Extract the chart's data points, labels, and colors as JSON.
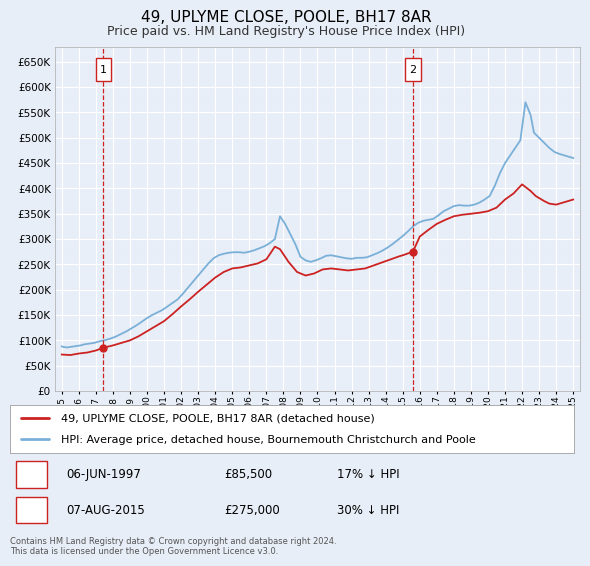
{
  "title": "49, UPLYME CLOSE, POOLE, BH17 8AR",
  "subtitle": "Price paid vs. HM Land Registry's House Price Index (HPI)",
  "background_color": "#e8eef7",
  "plot_bg_color": "#e8eef7",
  "red_color": "#cc2222",
  "blue_color": "#7ab0d8",
  "grid_color": "#ffffff",
  "legend_labels": [
    "49, UPLYME CLOSE, POOLE, BH17 8AR (detached house)",
    "HPI: Average price, detached house, Bournemouth Christchurch and Poole"
  ],
  "transaction1_date": "06-JUN-1997",
  "transaction1_price": "£85,500",
  "transaction1_hpi": "17% ↓ HPI",
  "transaction1_year": 1997.44,
  "transaction1_value": 85500,
  "transaction2_date": "07-AUG-2015",
  "transaction2_price": "£275,000",
  "transaction2_hpi": "30% ↓ HPI",
  "transaction2_year": 2015.6,
  "transaction2_value": 275000,
  "footer": "Contains HM Land Registry data © Crown copyright and database right 2024.\nThis data is licensed under the Open Government Licence v3.0.",
  "yticks": [
    0,
    50000,
    100000,
    150000,
    200000,
    250000,
    300000,
    350000,
    400000,
    450000,
    500000,
    550000,
    600000,
    650000
  ],
  "hpi_x": [
    1995.0,
    1995.1,
    1995.3,
    1995.5,
    1995.7,
    1995.9,
    1996.1,
    1996.3,
    1996.5,
    1996.7,
    1996.9,
    1997.1,
    1997.3,
    1997.5,
    1997.7,
    1997.9,
    1998.2,
    1998.5,
    1998.8,
    1999.1,
    1999.4,
    1999.7,
    2000.0,
    2000.3,
    2000.6,
    2000.9,
    2001.2,
    2001.5,
    2001.8,
    2002.1,
    2002.4,
    2002.7,
    2003.0,
    2003.3,
    2003.6,
    2003.9,
    2004.2,
    2004.5,
    2004.8,
    2005.1,
    2005.4,
    2005.7,
    2006.0,
    2006.3,
    2006.6,
    2006.9,
    2007.2,
    2007.5,
    2007.8,
    2008.1,
    2008.4,
    2008.7,
    2009.0,
    2009.3,
    2009.6,
    2009.9,
    2010.2,
    2010.5,
    2010.8,
    2011.1,
    2011.4,
    2011.7,
    2012.0,
    2012.3,
    2012.6,
    2012.9,
    2013.2,
    2013.5,
    2013.8,
    2014.1,
    2014.4,
    2014.7,
    2015.0,
    2015.3,
    2015.6,
    2015.9,
    2016.2,
    2016.5,
    2016.8,
    2017.1,
    2017.4,
    2017.7,
    2018.0,
    2018.3,
    2018.6,
    2018.9,
    2019.2,
    2019.5,
    2019.8,
    2020.1,
    2020.4,
    2020.7,
    2021.0,
    2021.3,
    2021.6,
    2021.9,
    2022.2,
    2022.5,
    2022.7,
    2023.0,
    2023.3,
    2023.6,
    2023.9,
    2024.2,
    2024.5,
    2024.8,
    2025.0
  ],
  "hpi_y": [
    88000,
    87000,
    86000,
    87000,
    88000,
    89000,
    90000,
    92000,
    93000,
    94000,
    95000,
    97000,
    99000,
    100000,
    102000,
    104000,
    108000,
    113000,
    118000,
    124000,
    130000,
    137000,
    144000,
    150000,
    155000,
    160000,
    167000,
    174000,
    181000,
    192000,
    204000,
    216000,
    228000,
    240000,
    252000,
    262000,
    268000,
    271000,
    273000,
    274000,
    274000,
    273000,
    275000,
    278000,
    282000,
    286000,
    292000,
    300000,
    345000,
    330000,
    310000,
    290000,
    265000,
    258000,
    255000,
    258000,
    262000,
    267000,
    268000,
    266000,
    264000,
    262000,
    261000,
    263000,
    263000,
    264000,
    268000,
    272000,
    277000,
    283000,
    290000,
    298000,
    306000,
    315000,
    325000,
    332000,
    336000,
    338000,
    340000,
    347000,
    355000,
    360000,
    365000,
    367000,
    366000,
    366000,
    368000,
    372000,
    378000,
    385000,
    405000,
    430000,
    450000,
    465000,
    480000,
    495000,
    570000,
    545000,
    510000,
    500000,
    490000,
    480000,
    472000,
    468000,
    465000,
    462000,
    460000
  ],
  "prop_x": [
    1995.0,
    1995.5,
    1996.0,
    1996.5,
    1997.0,
    1997.44,
    1998.0,
    1998.5,
    1999.0,
    1999.5,
    2000.0,
    2000.5,
    2001.0,
    2001.5,
    2002.0,
    2002.5,
    2003.0,
    2003.5,
    2004.0,
    2004.5,
    2005.0,
    2005.5,
    2006.0,
    2006.5,
    2007.0,
    2007.5,
    2007.8,
    2008.3,
    2008.8,
    2009.3,
    2009.8,
    2010.3,
    2010.8,
    2011.3,
    2011.8,
    2012.3,
    2012.8,
    2013.3,
    2013.8,
    2014.3,
    2014.8,
    2015.0,
    2015.6,
    2016.0,
    2016.5,
    2017.0,
    2017.5,
    2018.0,
    2018.5,
    2019.0,
    2019.5,
    2020.0,
    2020.5,
    2021.0,
    2021.5,
    2022.0,
    2022.5,
    2022.8,
    2023.3,
    2023.6,
    2024.0,
    2024.5,
    2025.0
  ],
  "prop_y": [
    72000,
    71000,
    74000,
    76000,
    80000,
    85500,
    90000,
    95000,
    100000,
    108000,
    118000,
    128000,
    138000,
    152000,
    167000,
    181000,
    196000,
    210000,
    224000,
    235000,
    242000,
    244000,
    248000,
    252000,
    260000,
    285000,
    280000,
    255000,
    235000,
    228000,
    232000,
    240000,
    242000,
    240000,
    238000,
    240000,
    242000,
    248000,
    254000,
    260000,
    266000,
    268000,
    275000,
    305000,
    318000,
    330000,
    338000,
    345000,
    348000,
    350000,
    352000,
    355000,
    362000,
    378000,
    390000,
    408000,
    395000,
    385000,
    375000,
    370000,
    368000,
    373000,
    378000
  ]
}
